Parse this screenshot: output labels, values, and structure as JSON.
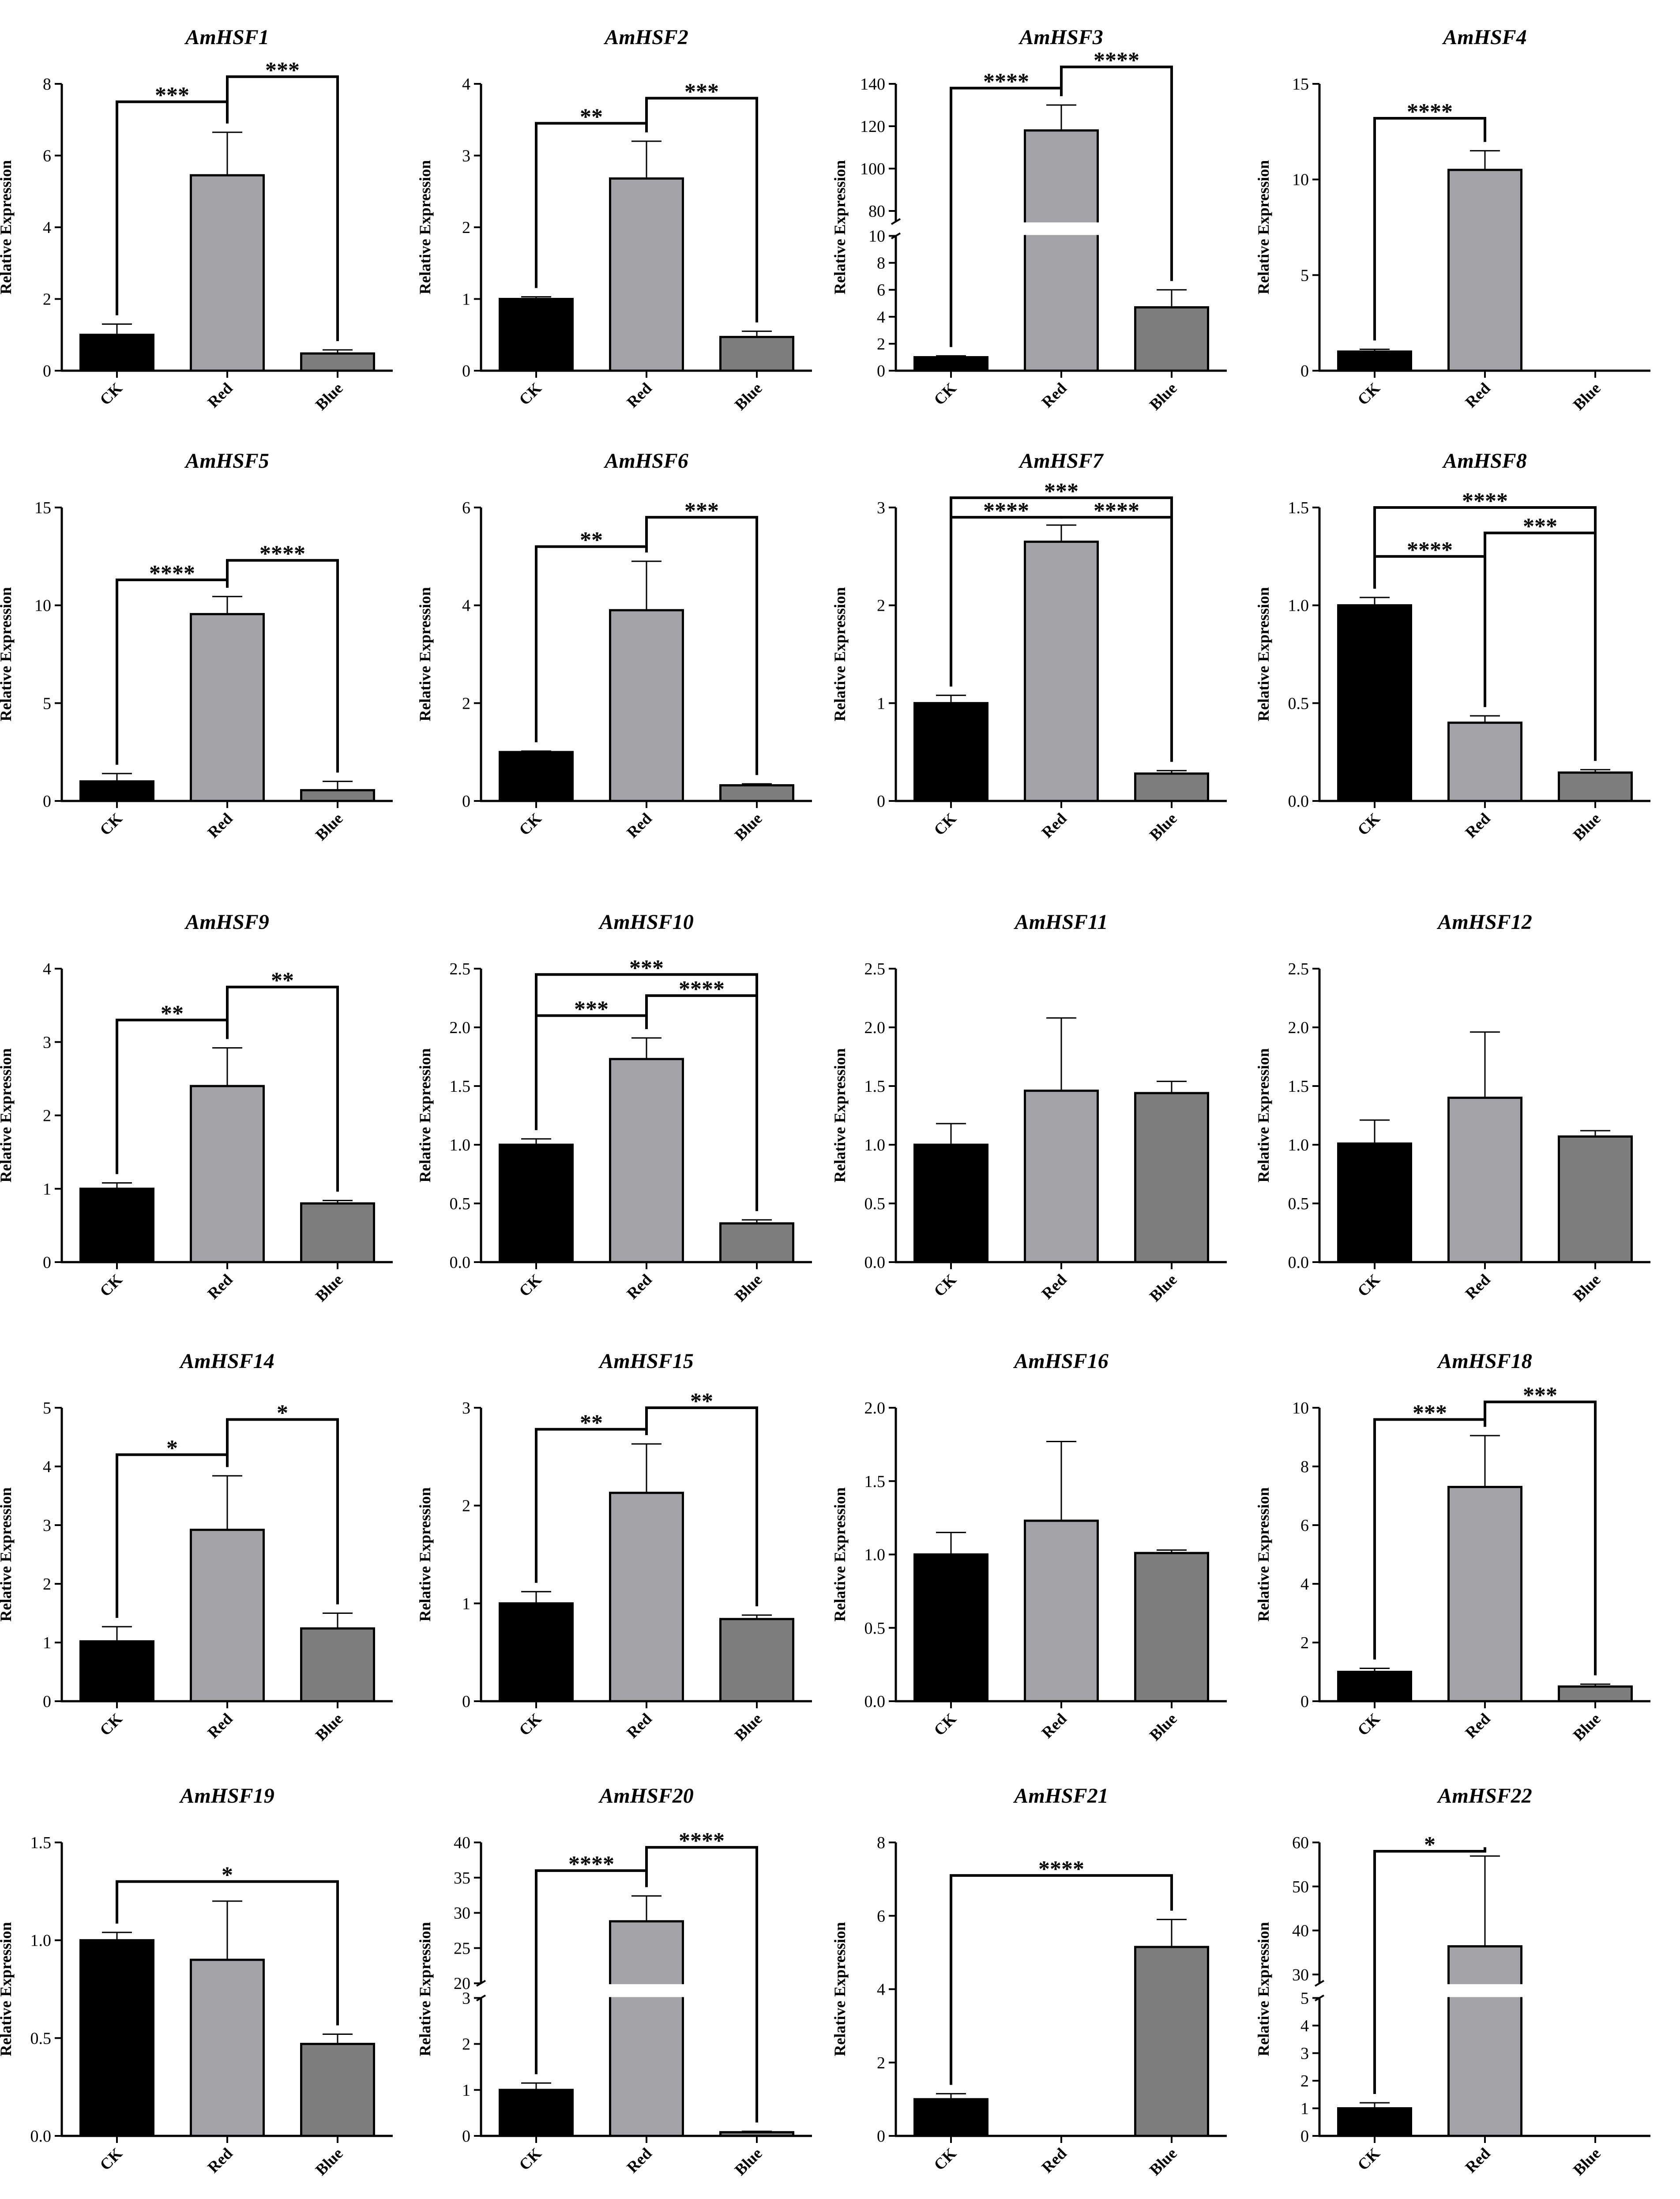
{
  "figure": {
    "colors": {
      "CK": "#000000",
      "Red": "#a3a3a7",
      "Blue": "#7d7d7d"
    }
  },
  "chart_data": [
    {
      "type": "bar",
      "title": "AmHSF1",
      "ylabel": "Relative Expression",
      "categories": [
        "CK",
        "Red",
        "Blue"
      ],
      "values": [
        1.0,
        5.45,
        0.48
      ],
      "errors": [
        0.3,
        1.2,
        0.1
      ],
      "ylim": [
        0,
        8
      ],
      "yticks": [
        0,
        2,
        4,
        6,
        8
      ],
      "tick_labels": [
        "0",
        "2",
        "4",
        "6",
        "8"
      ],
      "significance": [
        {
          "from": 0,
          "to": 1,
          "label": "***",
          "level": 7.5
        },
        {
          "from": 1,
          "to": 2,
          "label": "***",
          "level": 8.2
        }
      ]
    },
    {
      "type": "bar",
      "title": "AmHSF2",
      "ylabel": "Relative Expression",
      "categories": [
        "CK",
        "Red",
        "Blue"
      ],
      "values": [
        1.0,
        2.68,
        0.47
      ],
      "errors": [
        0.03,
        0.52,
        0.08
      ],
      "ylim": [
        0,
        4
      ],
      "yticks": [
        0,
        1,
        2,
        3,
        4
      ],
      "tick_labels": [
        "0",
        "1",
        "2",
        "3",
        "4"
      ],
      "significance": [
        {
          "from": 0,
          "to": 1,
          "label": "**",
          "level": 3.45
        },
        {
          "from": 1,
          "to": 2,
          "label": "***",
          "level": 3.8
        }
      ]
    },
    {
      "type": "bar",
      "title": "AmHSF3",
      "ylabel": "Relative Expression",
      "categories": [
        "CK",
        "Red",
        "Blue"
      ],
      "values": [
        1.0,
        118,
        4.7
      ],
      "errors": [
        0.1,
        12,
        1.3
      ],
      "ylim": [
        0,
        140
      ],
      "axis_break": [
        10,
        75
      ],
      "yticks": [
        0,
        2,
        4,
        6,
        8,
        10,
        80,
        100,
        120,
        140
      ],
      "tick_labels": [
        "0",
        "2",
        "4",
        "6",
        "8",
        "10",
        "80",
        "100",
        "120",
        "140"
      ],
      "significance": [
        {
          "from": 0,
          "to": 1,
          "label": "****",
          "level": 138
        },
        {
          "from": 1,
          "to": 2,
          "label": "****",
          "level": 148
        }
      ]
    },
    {
      "type": "bar",
      "title": "AmHSF4",
      "ylabel": "Relative Expression",
      "categories": [
        "CK",
        "Red",
        "Blue"
      ],
      "values": [
        1.0,
        10.5,
        0
      ],
      "errors": [
        0.12,
        1.0,
        0
      ],
      "ylim": [
        0,
        15
      ],
      "yticks": [
        0,
        5,
        10,
        15
      ],
      "tick_labels": [
        "0",
        "5",
        "10",
        "15"
      ],
      "significance": [
        {
          "from": 0,
          "to": 1,
          "label": "****",
          "level": 13.2
        }
      ]
    },
    {
      "type": "bar",
      "title": "AmHSF5",
      "ylabel": "Relative Expression",
      "categories": [
        "CK",
        "Red",
        "Blue"
      ],
      "values": [
        1.0,
        9.55,
        0.55
      ],
      "errors": [
        0.4,
        0.9,
        0.45
      ],
      "ylim": [
        0,
        15
      ],
      "yticks": [
        0,
        5,
        10,
        15
      ],
      "tick_labels": [
        "0",
        "5",
        "10",
        "15"
      ],
      "significance": [
        {
          "from": 0,
          "to": 1,
          "label": "****",
          "level": 11.3
        },
        {
          "from": 1,
          "to": 2,
          "label": "****",
          "level": 12.3
        }
      ]
    },
    {
      "type": "bar",
      "title": "AmHSF6",
      "ylabel": "Relative Expression",
      "categories": [
        "CK",
        "Red",
        "Blue"
      ],
      "values": [
        1.0,
        3.9,
        0.32
      ],
      "errors": [
        0.02,
        1.0,
        0.03
      ],
      "ylim": [
        0,
        6
      ],
      "yticks": [
        0,
        2,
        4,
        6
      ],
      "tick_labels": [
        "0",
        "2",
        "4",
        "6"
      ],
      "significance": [
        {
          "from": 0,
          "to": 1,
          "label": "**",
          "level": 5.2
        },
        {
          "from": 1,
          "to": 2,
          "label": "***",
          "level": 5.8
        }
      ]
    },
    {
      "type": "bar",
      "title": "AmHSF7",
      "ylabel": "Relative Expression",
      "categories": [
        "CK",
        "Red",
        "Blue"
      ],
      "values": [
        1.0,
        2.65,
        0.28
      ],
      "errors": [
        0.08,
        0.17,
        0.03
      ],
      "ylim": [
        0,
        3
      ],
      "yticks": [
        0,
        1,
        2,
        3
      ],
      "tick_labels": [
        "0",
        "1",
        "2",
        "3"
      ],
      "significance": [
        {
          "from": 0,
          "to": 1,
          "label": "****",
          "level": 2.9
        },
        {
          "from": 1,
          "to": 2,
          "label": "****",
          "level": 2.9
        },
        {
          "from": 0,
          "to": 2,
          "label": "***",
          "level": 3.1
        }
      ]
    },
    {
      "type": "bar",
      "title": "AmHSF8",
      "ylabel": "Relative Expression",
      "categories": [
        "CK",
        "Red",
        "Blue"
      ],
      "values": [
        1.0,
        0.4,
        0.145
      ],
      "errors": [
        0.04,
        0.035,
        0.015
      ],
      "ylim": [
        0,
        1.5
      ],
      "yticks": [
        0,
        0.5,
        1.0,
        1.5
      ],
      "tick_labels": [
        "0.0",
        "0.5",
        "1.0",
        "1.5"
      ],
      "significance": [
        {
          "from": 0,
          "to": 1,
          "label": "****",
          "level": 1.25
        },
        {
          "from": 1,
          "to": 2,
          "label": "***",
          "level": 1.37
        },
        {
          "from": 0,
          "to": 2,
          "label": "****",
          "level": 1.5
        }
      ]
    },
    {
      "type": "bar",
      "title": "AmHSF9",
      "ylabel": "Relative Expression",
      "categories": [
        "CK",
        "Red",
        "Blue"
      ],
      "values": [
        1.0,
        2.4,
        0.8
      ],
      "errors": [
        0.08,
        0.52,
        0.04
      ],
      "ylim": [
        0,
        4
      ],
      "yticks": [
        0,
        1,
        2,
        3,
        4
      ],
      "tick_labels": [
        "0",
        "1",
        "2",
        "3",
        "4"
      ],
      "significance": [
        {
          "from": 0,
          "to": 1,
          "label": "**",
          "level": 3.3
        },
        {
          "from": 1,
          "to": 2,
          "label": "**",
          "level": 3.75
        }
      ]
    },
    {
      "type": "bar",
      "title": "AmHSF10",
      "ylabel": "Relative Expression",
      "categories": [
        "CK",
        "Red",
        "Blue"
      ],
      "values": [
        1.0,
        1.73,
        0.33
      ],
      "errors": [
        0.05,
        0.18,
        0.03
      ],
      "ylim": [
        0,
        2.5
      ],
      "yticks": [
        0,
        0.5,
        1.0,
        1.5,
        2.0,
        2.5
      ],
      "tick_labels": [
        "0.0",
        "0.5",
        "1.0",
        "1.5",
        "2.0",
        "2.5"
      ],
      "significance": [
        {
          "from": 0,
          "to": 1,
          "label": "***",
          "level": 2.1
        },
        {
          "from": 1,
          "to": 2,
          "label": "****",
          "level": 2.27
        },
        {
          "from": 0,
          "to": 2,
          "label": "***",
          "level": 2.45
        }
      ]
    },
    {
      "type": "bar",
      "title": "AmHSF11",
      "ylabel": "Relative Expression",
      "categories": [
        "CK",
        "Red",
        "Blue"
      ],
      "values": [
        1.0,
        1.46,
        1.44
      ],
      "errors": [
        0.18,
        0.62,
        0.1
      ],
      "ylim": [
        0,
        2.5
      ],
      "yticks": [
        0,
        0.5,
        1.0,
        1.5,
        2.0,
        2.5
      ],
      "tick_labels": [
        "0.0",
        "0.5",
        "1.0",
        "1.5",
        "2.0",
        "2.5"
      ],
      "significance": []
    },
    {
      "type": "bar",
      "title": "AmHSF12",
      "ylabel": "Relative Expression",
      "categories": [
        "CK",
        "Red",
        "Blue"
      ],
      "values": [
        1.01,
        1.4,
        1.07
      ],
      "errors": [
        0.2,
        0.56,
        0.05
      ],
      "ylim": [
        0,
        2.5
      ],
      "yticks": [
        0,
        0.5,
        1.0,
        1.5,
        2.0,
        2.5
      ],
      "tick_labels": [
        "0.0",
        "0.5",
        "1.0",
        "1.5",
        "2.0",
        "2.5"
      ],
      "significance": []
    },
    {
      "type": "bar",
      "title": "AmHSF14",
      "ylabel": "Relative Expression",
      "categories": [
        "CK",
        "Red",
        "Blue"
      ],
      "values": [
        1.02,
        2.92,
        1.24
      ],
      "errors": [
        0.25,
        0.92,
        0.26
      ],
      "ylim": [
        0,
        5
      ],
      "yticks": [
        0,
        1,
        2,
        3,
        4,
        5
      ],
      "tick_labels": [
        "0",
        "1",
        "2",
        "3",
        "4",
        "5"
      ],
      "significance": [
        {
          "from": 0,
          "to": 1,
          "label": "*",
          "level": 4.2
        },
        {
          "from": 1,
          "to": 2,
          "label": "*",
          "level": 4.8
        }
      ]
    },
    {
      "type": "bar",
      "title": "AmHSF15",
      "ylabel": "Relative Expression",
      "categories": [
        "CK",
        "Red",
        "Blue"
      ],
      "values": [
        1.0,
        2.13,
        0.84
      ],
      "errors": [
        0.12,
        0.5,
        0.04
      ],
      "ylim": [
        0,
        3
      ],
      "yticks": [
        0,
        1,
        2,
        3
      ],
      "tick_labels": [
        "0",
        "1",
        "2",
        "3"
      ],
      "significance": [
        {
          "from": 0,
          "to": 1,
          "label": "**",
          "level": 2.78
        },
        {
          "from": 1,
          "to": 2,
          "label": "**",
          "level": 3.0
        }
      ]
    },
    {
      "type": "bar",
      "title": "AmHSF16",
      "ylabel": "Relative Expression",
      "categories": [
        "CK",
        "Red",
        "Blue"
      ],
      "values": [
        1.0,
        1.23,
        1.01
      ],
      "errors": [
        0.15,
        0.54,
        0.02
      ],
      "ylim": [
        0,
        2.0
      ],
      "yticks": [
        0,
        0.5,
        1.0,
        1.5,
        2.0
      ],
      "tick_labels": [
        "0.0",
        "0.5",
        "1.0",
        "1.5",
        "2.0"
      ],
      "significance": []
    },
    {
      "type": "bar",
      "title": "AmHSF18",
      "ylabel": "Relative Expression",
      "categories": [
        "CK",
        "Red",
        "Blue"
      ],
      "values": [
        1.0,
        7.3,
        0.5
      ],
      "errors": [
        0.12,
        1.75,
        0.08
      ],
      "ylim": [
        0,
        10
      ],
      "yticks": [
        0,
        2,
        4,
        6,
        8,
        10
      ],
      "tick_labels": [
        "0",
        "2",
        "4",
        "6",
        "8",
        "10"
      ],
      "significance": [
        {
          "from": 0,
          "to": 1,
          "label": "***",
          "level": 9.6
        },
        {
          "from": 1,
          "to": 2,
          "label": "***",
          "level": 10.2
        }
      ]
    },
    {
      "type": "bar",
      "title": "AmHSF19",
      "ylabel": "Relative Expression",
      "categories": [
        "CK",
        "Red",
        "Blue"
      ],
      "values": [
        1.0,
        0.9,
        0.47
      ],
      "errors": [
        0.04,
        0.3,
        0.05
      ],
      "ylim": [
        0,
        1.5
      ],
      "yticks": [
        0,
        0.5,
        1.0,
        1.5
      ],
      "tick_labels": [
        "0.0",
        "0.5",
        "1.0",
        "1.5"
      ],
      "significance": [
        {
          "from": 0,
          "to": 2,
          "label": "*",
          "level": 1.3
        }
      ]
    },
    {
      "type": "bar",
      "title": "AmHSF20",
      "ylabel": "Relative Expression",
      "categories": [
        "CK",
        "Red",
        "Blue"
      ],
      "values": [
        1.0,
        28.8,
        0.08
      ],
      "errors": [
        0.15,
        3.6,
        0.02
      ],
      "ylim": [
        0,
        40
      ],
      "axis_break": [
        3,
        20
      ],
      "yticks": [
        0,
        1,
        2,
        3,
        20,
        25,
        30,
        35,
        40
      ],
      "tick_labels": [
        "0",
        "1",
        "2",
        "3",
        "20",
        "25",
        "30",
        "35",
        "40"
      ],
      "significance": [
        {
          "from": 0,
          "to": 1,
          "label": "****",
          "level": 36
        },
        {
          "from": 1,
          "to": 2,
          "label": "****",
          "level": 39.3
        }
      ]
    },
    {
      "type": "bar",
      "title": "AmHSF21",
      "ylabel": "Relative Expression",
      "categories": [
        "CK",
        "Red",
        "Blue"
      ],
      "values": [
        1.0,
        0,
        5.15
      ],
      "errors": [
        0.15,
        0,
        0.75
      ],
      "ylim": [
        0,
        8
      ],
      "yticks": [
        0,
        2,
        4,
        6,
        8
      ],
      "tick_labels": [
        "0",
        "2",
        "4",
        "6",
        "8"
      ],
      "significance": [
        {
          "from": 0,
          "to": 2,
          "label": "****",
          "level": 7.1
        }
      ]
    },
    {
      "type": "bar",
      "title": "AmHSF22",
      "ylabel": "Relative Expression",
      "categories": [
        "CK",
        "Red",
        "Blue"
      ],
      "values": [
        1.0,
        36.4,
        0
      ],
      "errors": [
        0.2,
        20.5,
        0
      ],
      "ylim": [
        0,
        60
      ],
      "axis_break": [
        5,
        28
      ],
      "yticks": [
        0,
        1,
        2,
        3,
        4,
        5,
        30,
        40,
        50,
        60
      ],
      "tick_labels": [
        "0",
        "1",
        "2",
        "3",
        "4",
        "5",
        "30",
        "40",
        "50",
        "60"
      ],
      "significance": [
        {
          "from": 0,
          "to": 1,
          "label": "*",
          "level": 58
        }
      ]
    }
  ]
}
